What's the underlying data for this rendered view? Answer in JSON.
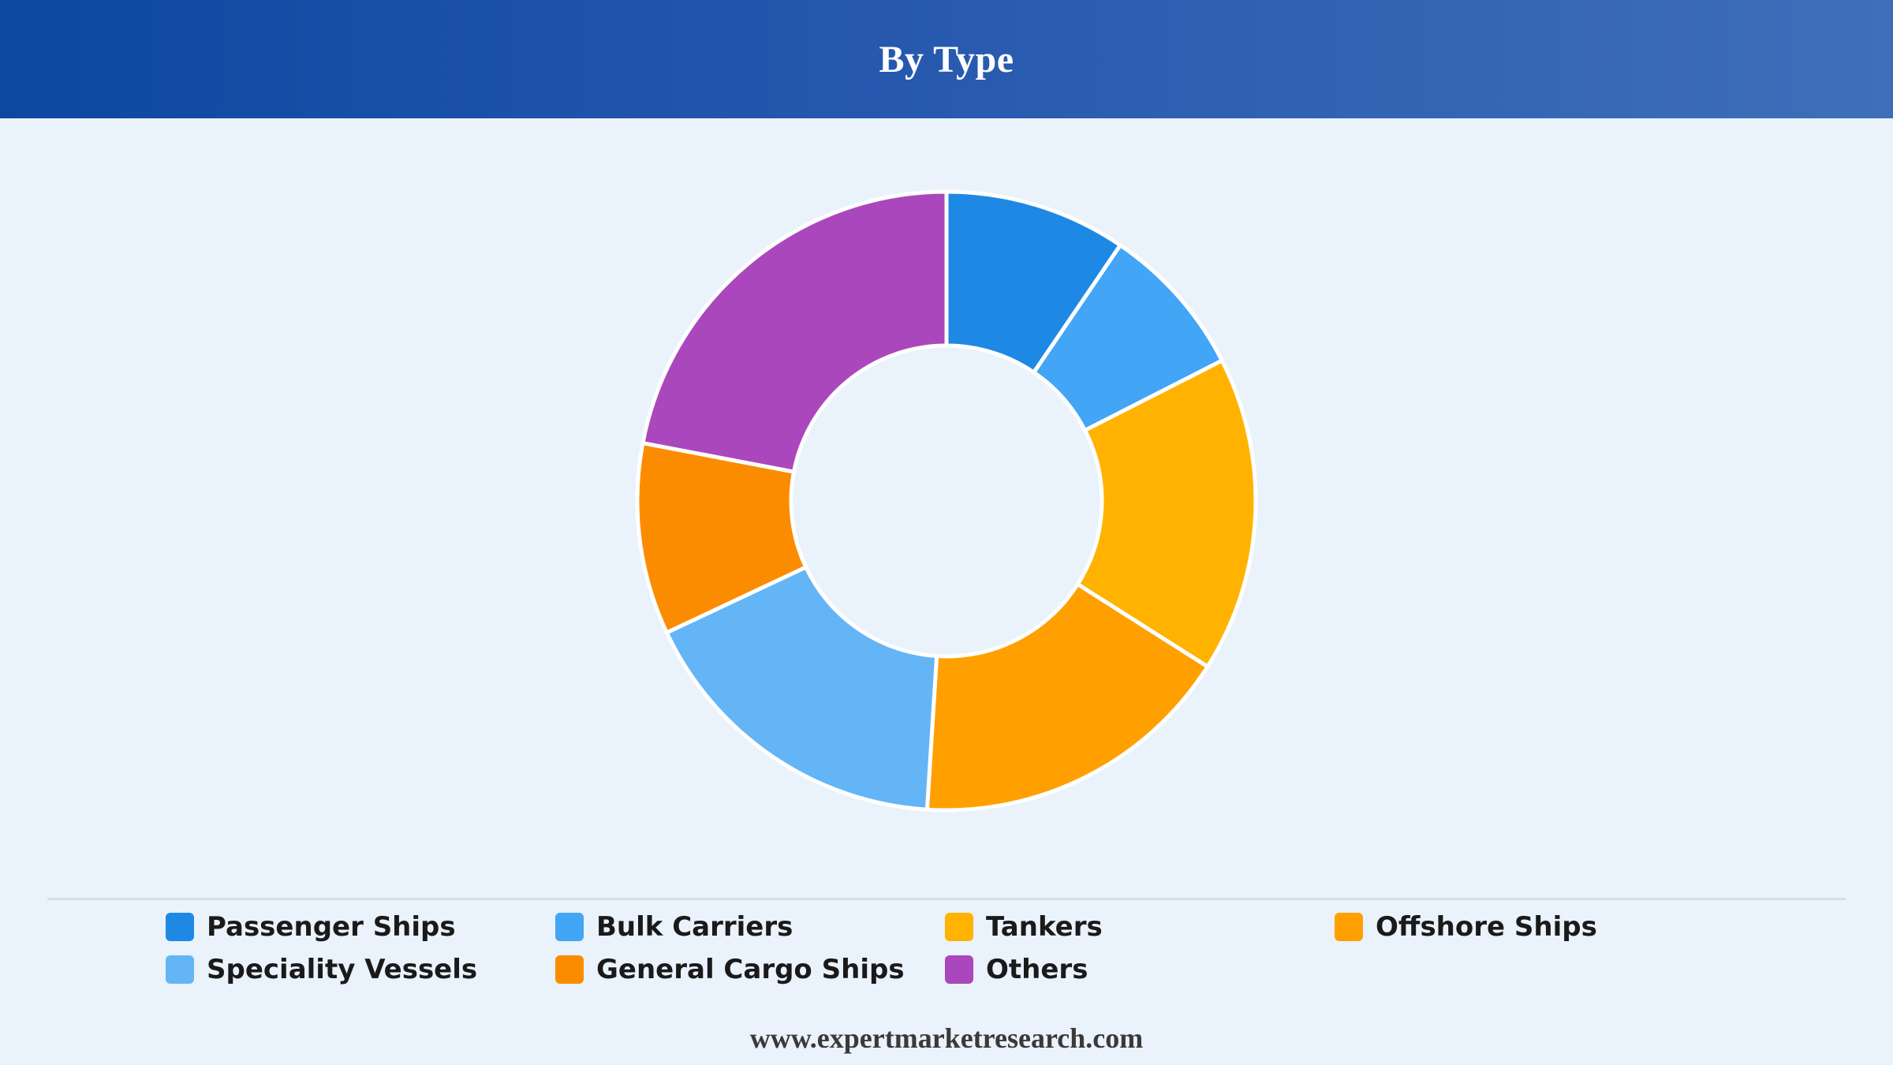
{
  "header": {
    "title": "By Type"
  },
  "chart_data": {
    "type": "pie",
    "variant": "donut",
    "title": "By Type",
    "categories": [
      "Passenger Ships",
      "Bulk Carriers",
      "Tankers",
      "Offshore Ships",
      "Speciality Vessels",
      "General Cargo Ships",
      "Others"
    ],
    "values": [
      9.5,
      8,
      16.5,
      17,
      17,
      10,
      22
    ],
    "colors": [
      "#1e88e5",
      "#42a5f5",
      "#ffb300",
      "#ffa000",
      "#64b5f6",
      "#fb8c00",
      "#ab47bc"
    ],
    "legend": "bottom"
  },
  "legend": {
    "items": [
      {
        "label": "Passenger Ships",
        "color": "#1e88e5"
      },
      {
        "label": "Bulk Carriers",
        "color": "#42a5f5"
      },
      {
        "label": "Tankers",
        "color": "#ffb300"
      },
      {
        "label": "Offshore Ships",
        "color": "#ffa000"
      },
      {
        "label": "Speciality Vessels",
        "color": "#64b5f6"
      },
      {
        "label": "General Cargo Ships",
        "color": "#fb8c00"
      },
      {
        "label": "Others",
        "color": "#ab47bc"
      }
    ]
  },
  "footer": {
    "source": "www.expertmarketresearch.com"
  }
}
